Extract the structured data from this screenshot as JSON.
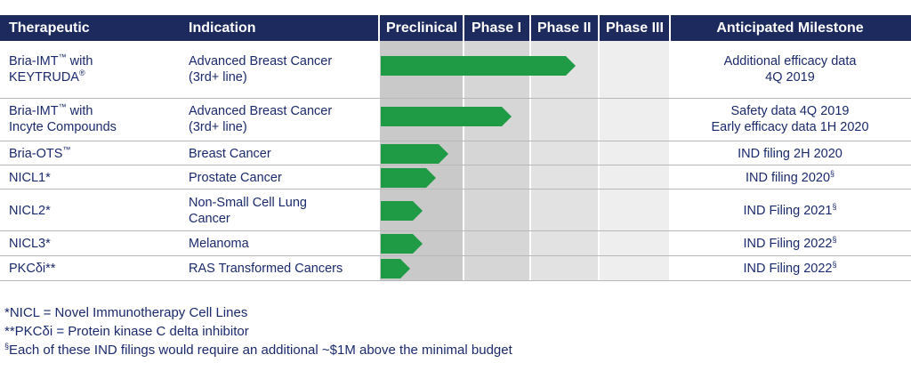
{
  "header": {
    "therapeutic": "Therapeutic",
    "indication": "Indication",
    "preclinical": "Preclinical",
    "phase1": "Phase I",
    "phase2": "Phase II",
    "phase3": "Phase III",
    "milestone": "Anticipated Milestone"
  },
  "rows": [
    {
      "therapeutic_l1": "Bria-IMT",
      "tm1": "™",
      "therapeutic_l1b": " with",
      "therapeutic_l2": "KEYTRUDA",
      "reg": "®",
      "indication_l1": "Advanced Breast Cancer",
      "indication_l2": "(3rd+ line)",
      "milestone_l1": "Additional efficacy data",
      "milestone_l2": "4Q 2019",
      "progress": 0.98
    },
    {
      "therapeutic_l1": "Bria-IMT",
      "tm1": "™",
      "therapeutic_l1b": " with",
      "therapeutic_l2": "Incyte Compounds",
      "indication_l1": "Advanced Breast Cancer",
      "indication_l2": "(3rd+ line)",
      "milestone_l1": "Safety data 4Q 2019",
      "milestone_l2": "Early efficacy data 1H 2020",
      "progress": 0.66
    },
    {
      "therapeutic_l1": "Bria-OTS",
      "tm1": "™",
      "indication_l1": "Breast Cancer",
      "milestone_l1": "IND filing 2H 2020",
      "progress": 0.34
    },
    {
      "therapeutic_l1": "NICL1*",
      "indication_l1": "Prostate Cancer",
      "milestone_l1": "IND filing 2020",
      "sect": "§",
      "progress": 0.28
    },
    {
      "therapeutic_l1": "NICL2*",
      "indication_l1": "Non-Small Cell Lung",
      "indication_l2": "Cancer",
      "milestone_l1": "IND Filing 2021",
      "sect": "§",
      "progress": 0.21
    },
    {
      "therapeutic_l1": "NICL3*",
      "indication_l1": "Melanoma",
      "milestone_l1": "IND Filing 2022",
      "sect": "§",
      "progress": 0.21
    },
    {
      "therapeutic_l1": "PKCδi**",
      "indication_l1": "RAS Transformed Cancers",
      "milestone_l1": "IND Filing 2022",
      "sect": "§",
      "progress": 0.15
    }
  ],
  "footnotes": {
    "f1": "*NICL = Novel Immunotherapy Cell Lines",
    "f2": "**PKCδi = Protein kinase C delta inhibitor",
    "f3_mark": "§",
    "f3": "Each of these IND filings would require an additional ~$1M above the minimal budget"
  },
  "colors": {
    "header": "#1c2a5e",
    "arrow": "#1f9a45",
    "text": "#1a2a6c"
  }
}
